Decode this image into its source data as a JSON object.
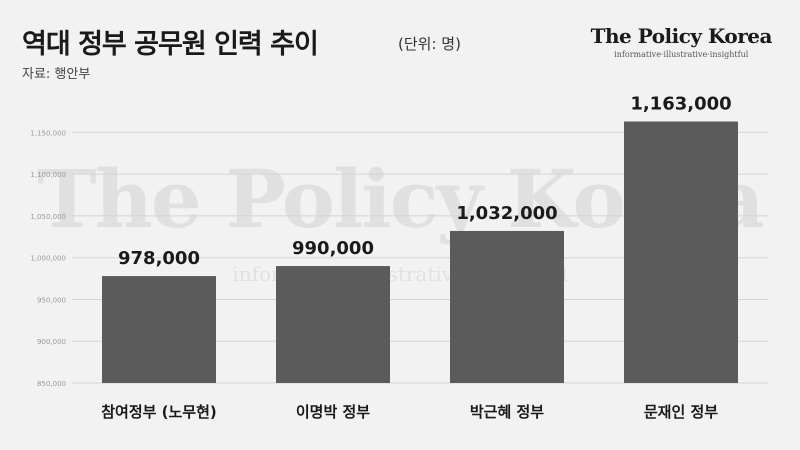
{
  "header": {
    "title": "역대 정부 공무원 인력 추이",
    "unit": "(단위: 명)",
    "source": "자료: 행안부"
  },
  "brand": {
    "name": "The Policy Korea",
    "tagline": "informative·illustrative·insightful"
  },
  "colors": {
    "bar": "#5b5b5b",
    "grid": "#d4d4d4",
    "value_label": "#1a1a1a"
  },
  "chart_data": {
    "type": "bar",
    "categories": [
      "참여정부 (노무현)",
      "이명박 정부",
      "박근혜 정부",
      "문재인 정부"
    ],
    "values": [
      978000,
      990000,
      1032000,
      1163000
    ],
    "value_labels": [
      "978,000",
      "990,000",
      "1,032,000",
      "1,163,000"
    ],
    "yticks": [
      850000,
      900000,
      950000,
      1000000,
      1050000,
      1100000,
      1150000
    ],
    "ytick_labels": [
      "850,000",
      "900,000",
      "950,000",
      "1,000,000",
      "1,050,000",
      "1,100,000",
      "1,150,000"
    ],
    "ylim": [
      850000,
      1172000
    ],
    "grid": true
  }
}
